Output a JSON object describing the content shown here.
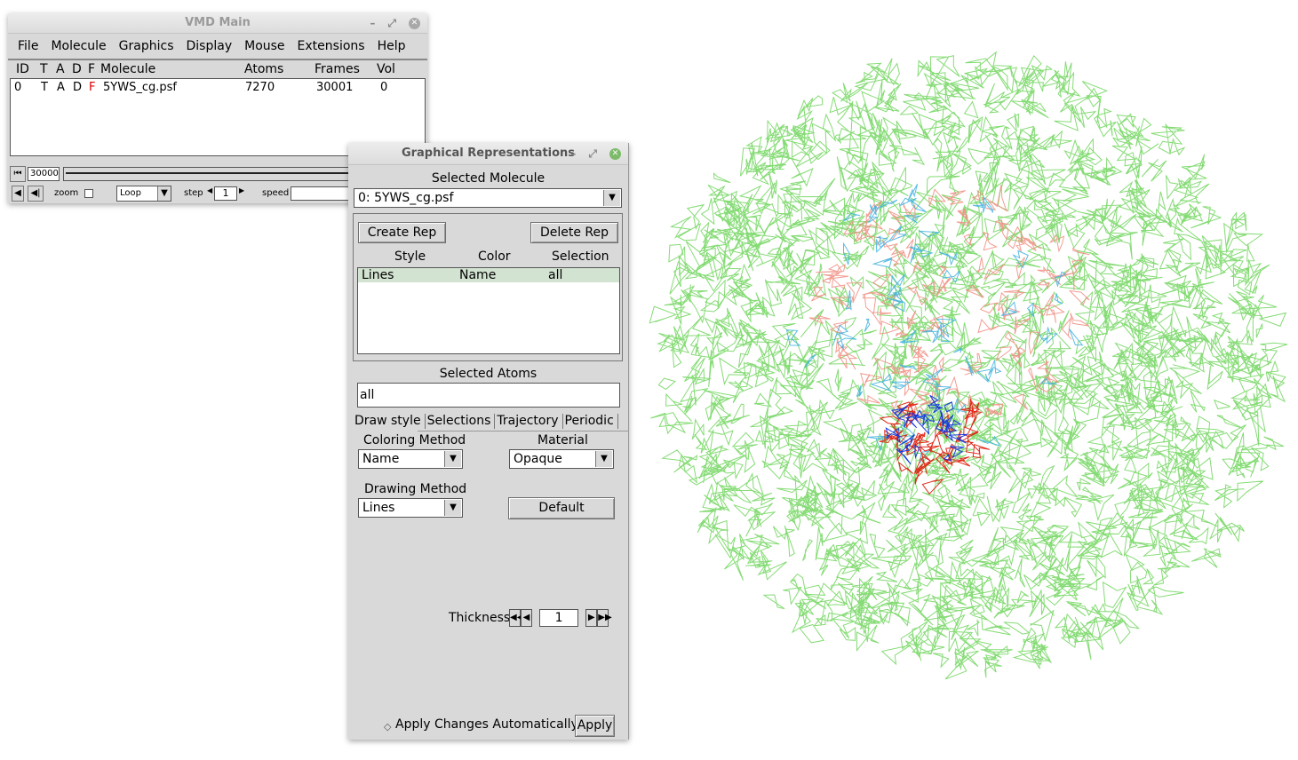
{
  "main_window": {
    "title": "VMD Main",
    "menu": [
      "File",
      "Molecule",
      "Graphics",
      "Display",
      "Mouse",
      "Extensions",
      "Help"
    ],
    "columns": {
      "id": "ID",
      "t": "T",
      "a": "A",
      "d": "D",
      "f": "F",
      "molecule": "Molecule",
      "atoms": "Atoms",
      "frames": "Frames",
      "vol": "Vol"
    },
    "molecules": [
      {
        "id": "0",
        "t": "T",
        "a": "A",
        "d": "D",
        "f": "F",
        "name": "5YWS_cg.psf",
        "atoms": "7270",
        "frames": "30001",
        "vol": "0"
      }
    ],
    "frame_value": "30000",
    "zoom_label": "zoom",
    "loop_value": "Loop",
    "step_label": "step",
    "step_value": "1",
    "speed_label": "speed"
  },
  "rep_window": {
    "title": "Graphical Representations",
    "selected_molecule_label": "Selected Molecule",
    "selected_molecule_value": "0: 5YWS_cg.psf",
    "create_rep": "Create Rep",
    "delete_rep": "Delete Rep",
    "rep_columns": {
      "style": "Style",
      "color": "Color",
      "selection": "Selection"
    },
    "reps": [
      {
        "style": "Lines",
        "color": "Name",
        "selection": "all"
      }
    ],
    "selected_atoms_label": "Selected Atoms",
    "selected_atoms_value": "all",
    "tabs": [
      "Draw style",
      "Selections",
      "Trajectory",
      "Periodic"
    ],
    "coloring_method_label": "Coloring Method",
    "coloring_method_value": "Name",
    "material_label": "Material",
    "material_value": "Opaque",
    "drawing_method_label": "Drawing Method",
    "drawing_method_value": "Lines",
    "default_button": "Default",
    "thickness_label": "Thickness",
    "thickness_value": "1",
    "apply_auto_label": "Apply Changes Automatically",
    "apply_button": "Apply"
  },
  "colors": {
    "accent_green": "#7dbb6a",
    "lines_green": "#7ed96e",
    "selected_row": "#d3e3d1",
    "salmon": "#f08c80",
    "blue": "#1030e0",
    "red": "#e02010",
    "cyan": "#40b0e0"
  }
}
